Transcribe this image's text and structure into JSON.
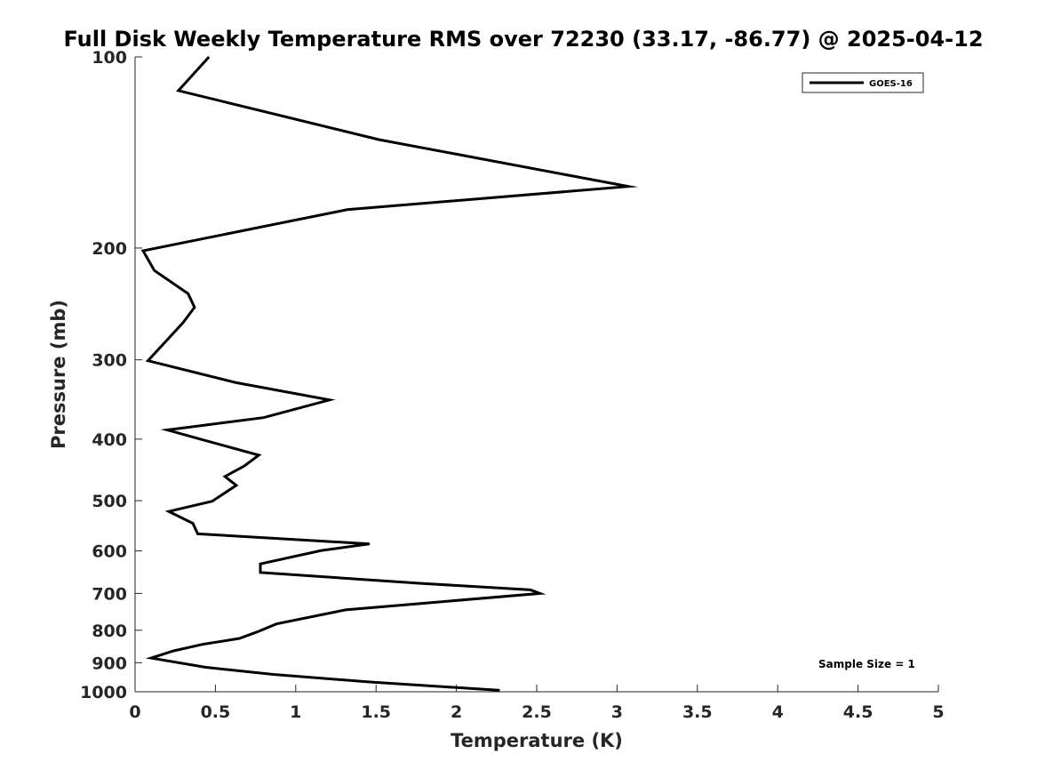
{
  "chart_data": {
    "type": "line",
    "title": "Full Disk Weekly Temperature RMS over 72230 (33.17, -86.77) @ 2025-04-12",
    "xlabel": "Temperature (K)",
    "ylabel": "Pressure (mb)",
    "xlim": [
      0,
      5
    ],
    "ylim": [
      1000,
      100
    ],
    "yscale": "log",
    "x_ticks": [
      "0",
      "0.5",
      "1",
      "1.5",
      "2",
      "2.5",
      "3",
      "3.5",
      "4",
      "4.5",
      "5"
    ],
    "y_ticks": [
      "100",
      "200",
      "300",
      "400",
      "500",
      "600",
      "700",
      "800",
      "900",
      "1000"
    ],
    "grid": false,
    "legend_position": "top-right",
    "series": [
      {
        "name": "GOES-16",
        "color": "#000000",
        "x": [
          0.46,
          0.27,
          1.52,
          3.07,
          1.32,
          0.05,
          0.12,
          0.33,
          0.37,
          0.3,
          0.08,
          0.63,
          1.21,
          0.8,
          0.2,
          0.42,
          0.77,
          0.68,
          0.56,
          0.63,
          0.48,
          0.21,
          0.36,
          0.39,
          1.46,
          1.16,
          0.78,
          0.78,
          1.78,
          2.46,
          2.52,
          1.78,
          1.31,
          0.88,
          0.76,
          0.65,
          0.42,
          0.24,
          0.1,
          0.44,
          0.86,
          1.46,
          2.27
        ],
        "y": [
          100,
          113,
          135,
          160,
          174,
          202,
          217,
          236,
          248,
          262,
          301,
          326,
          347,
          370,
          387,
          401,
          424,
          441,
          458,
          473,
          501,
          520,
          543,
          564,
          585,
          599,
          629,
          649,
          675,
          691,
          700,
          726,
          743,
          782,
          805,
          824,
          842,
          862,
          885,
          915,
          939,
          965,
          995
        ]
      }
    ],
    "annotations": [
      "Sample Size = 1"
    ]
  }
}
